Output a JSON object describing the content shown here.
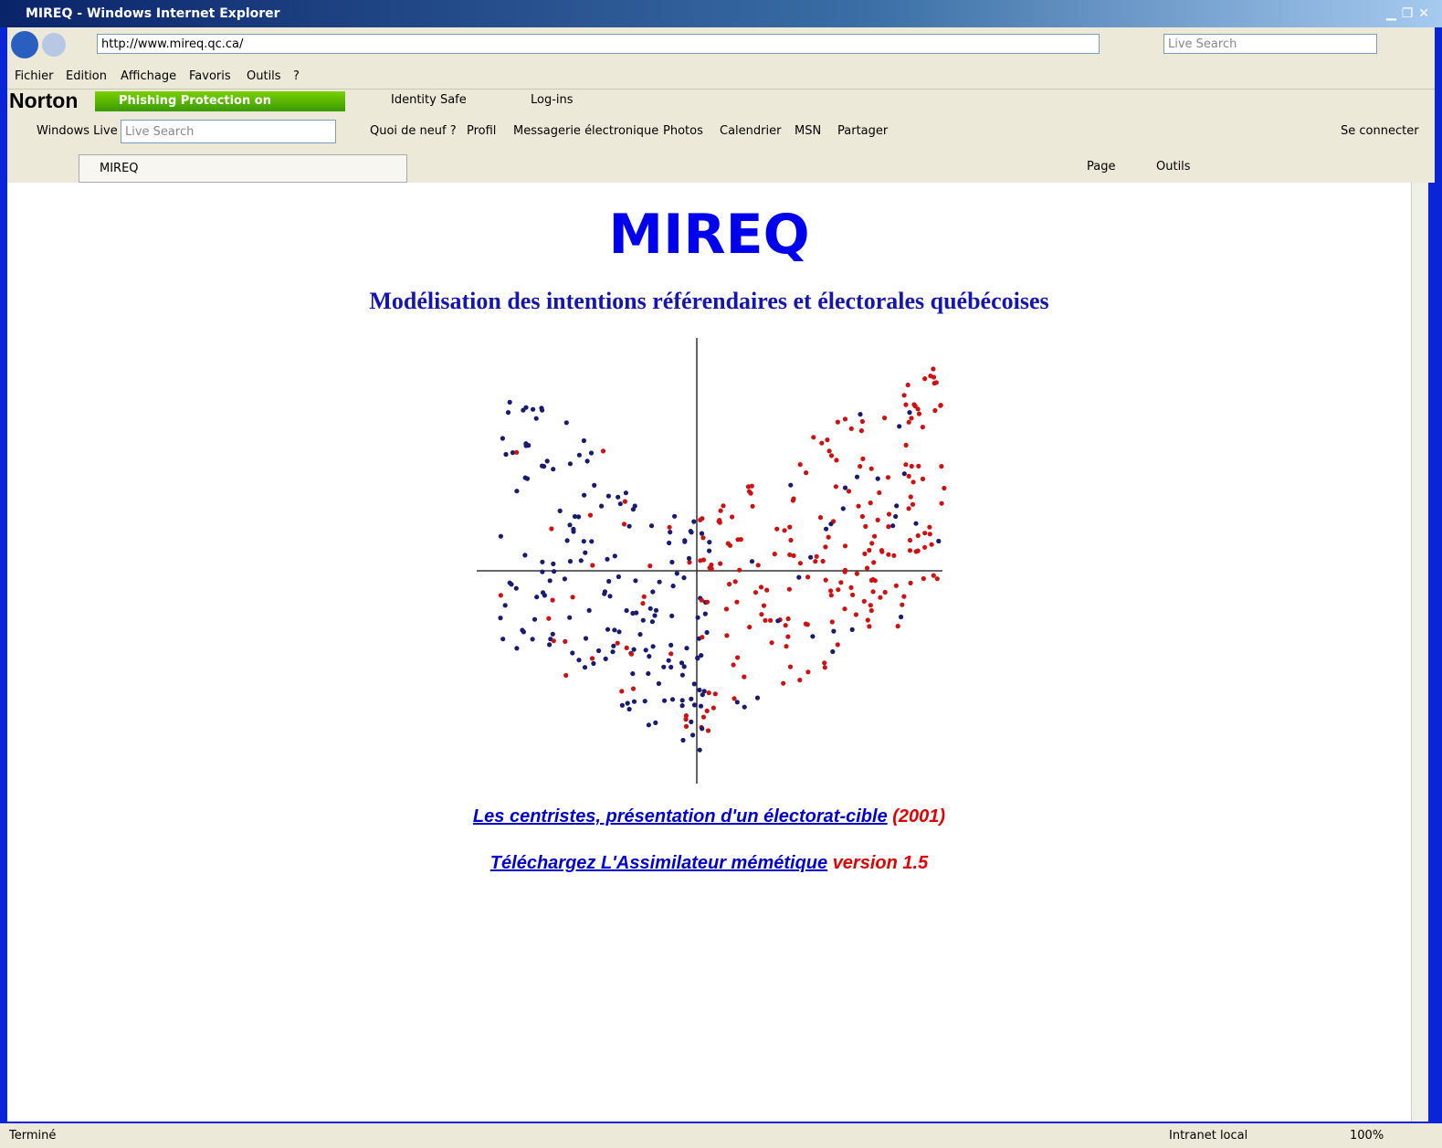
{
  "window": {
    "title": "MIREQ - Windows Internet Explorer"
  },
  "address_bar": {
    "url": "http://www.mireq.qc.ca/",
    "search_placeholder": "Live Search"
  },
  "menu": [
    "Fichier",
    "Edition",
    "Affichage",
    "Favoris",
    "Outils",
    "?"
  ],
  "norton": {
    "brand": "Norton",
    "phishing": "Phishing Protection on",
    "identity": "Identity Safe",
    "logins": "Log-ins"
  },
  "live_toolbar": {
    "brand": "Windows Live",
    "search_placeholder": "Live Search",
    "links": [
      "Quoi de neuf ?",
      "Profil",
      "Messagerie électronique",
      "Photos",
      "Calendrier",
      "MSN",
      "Partager"
    ],
    "signin": "Se connecter"
  },
  "tab": {
    "title": "MIREQ"
  },
  "command_bar": [
    "Page",
    "Outils"
  ],
  "page": {
    "title": "MIREQ",
    "subtitle": "Modélisation des intentions référendaires et électorales québécoises",
    "links": [
      {
        "text": "Les centristes, présentation d'un électorat-cible",
        "note": "(2001)"
      },
      {
        "text": "Téléchargez L'Assimilateur mémétique",
        "note": "version 1.5"
      }
    ]
  },
  "status_bar": {
    "status": "Terminé",
    "zone": "Intranet local",
    "zoom": "100%"
  }
}
